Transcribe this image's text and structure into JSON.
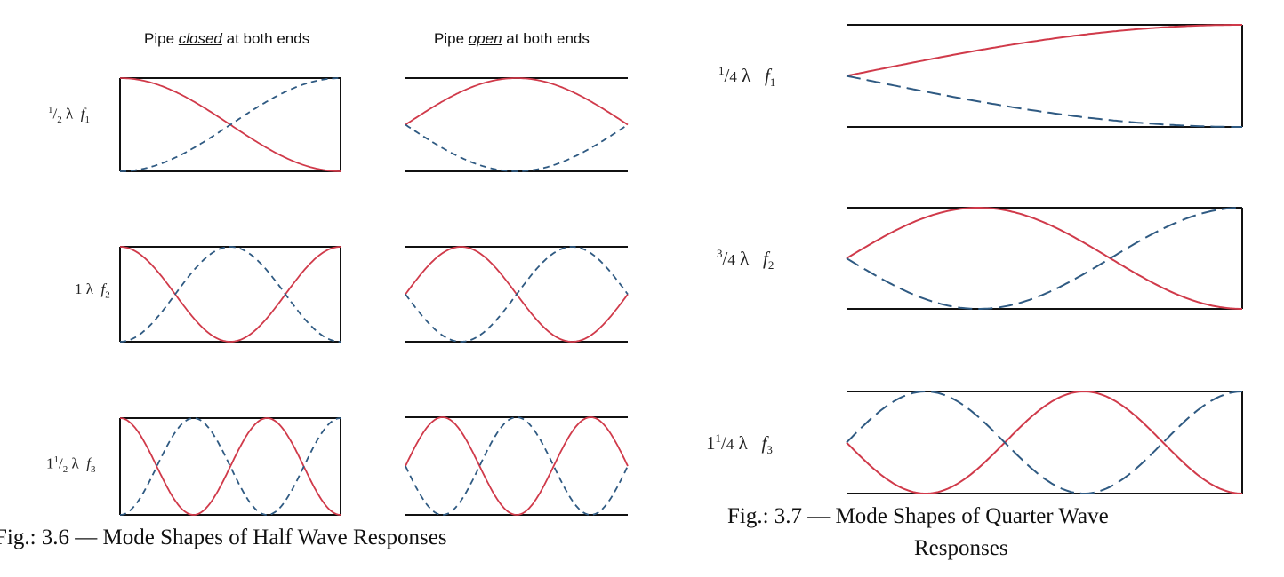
{
  "fig36": {
    "header_closed": {
      "prefix": "Pipe ",
      "em": "closed",
      "suffix": " at both ends"
    },
    "header_open": {
      "prefix": "Pipe ",
      "em": "open",
      "suffix": " at both ends"
    },
    "rows": [
      {
        "num": "1",
        "den": "2",
        "lambda": "λ",
        "f": "f",
        "sub": "1"
      },
      {
        "num": "",
        "den": "",
        "whole": "1",
        "lambda": "λ",
        "f": "f",
        "sub": "2"
      },
      {
        "num": "1",
        "den": "2",
        "whole": "1",
        "lambda": "λ",
        "f": "f",
        "sub": "3"
      }
    ],
    "caption": "Fig.: 3.6 — Mode Shapes of Half Wave Responses"
  },
  "fig37": {
    "rows": [
      {
        "num": "1",
        "den": "4",
        "lambda": "λ",
        "f": "f",
        "sub": "1"
      },
      {
        "num": "3",
        "den": "4",
        "lambda": "λ",
        "f": "f",
        "sub": "2"
      },
      {
        "num": "1",
        "den": "4",
        "whole": "1",
        "lambda": "λ",
        "f": "f",
        "sub": "3"
      }
    ],
    "caption_line1": "Fig.: 3.7 — Mode Shapes of Quarter Wave",
    "caption_line2": "Responses"
  },
  "colors": {
    "solid": "#d03a4a",
    "dashed": "#2f5a82",
    "frame": "#111111"
  }
}
